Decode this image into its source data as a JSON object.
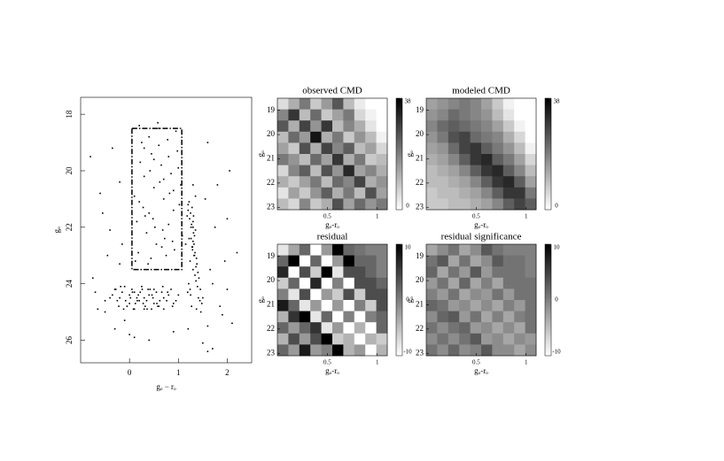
{
  "chart_data": [
    {
      "type": "scatter",
      "x_label": "gₒ − rₒ",
      "y_label": "gₒ",
      "color": "#000000",
      "xlim": [
        -1,
        2.5
      ],
      "ylim": [
        17.4,
        26.8
      ],
      "y_inverted": true,
      "xticks": [
        0,
        1,
        2
      ],
      "yticks": [
        18,
        20,
        22,
        24,
        26
      ],
      "selection_box": {
        "x": [
          0.05,
          1.07
        ],
        "y": [
          18.5,
          23.5
        ]
      },
      "x": [
        -0.3,
        -0.2,
        -0.1,
        0,
        0.1,
        0.2,
        0.3,
        0.4,
        0.5,
        0.6,
        -0.25,
        -0.15,
        -0.05,
        0.05,
        0.15,
        0.25,
        0.35,
        0.45,
        0.55,
        0.7,
        -0.35,
        -0.12,
        0.02,
        0.12,
        0.22,
        0.32,
        0.42,
        0.62,
        0.8,
        0.9,
        -0.18,
        -0.08,
        0.08,
        0.18,
        0.28,
        0.38,
        0.48,
        0.58,
        0.68,
        0.78,
        -0.4,
        -0.28,
        0.0,
        0.1,
        0.3,
        0.5,
        0.7,
        0.85,
        0.95,
        1.0,
        -0.22,
        0.06,
        0.16,
        0.26,
        0.36,
        0.46,
        0.56,
        0.66,
        0.76,
        0.88,
        1.2,
        1.25,
        1.3,
        1.35,
        1.22,
        1.28,
        1.32,
        1.38,
        1.18,
        1.26,
        1.3,
        1.34,
        1.24,
        1.4,
        1.2,
        1.27,
        1.33,
        1.29,
        1.36,
        1.42,
        1.15,
        1.23,
        1.31,
        1.37,
        1.21,
        1.45,
        1.3,
        1.26,
        1.34,
        1.39,
        1.28,
        1.32,
        1.36,
        1.25,
        1.44,
        1.19,
        1.3,
        1.33,
        1.27,
        1.41,
        1.35,
        1.48,
        1.22,
        1.31,
        1.38,
        1.24,
        1.3,
        1.46,
        1.29,
        1.37,
        0.2,
        0.4,
        0.6,
        0.8,
        1.0,
        0.3,
        0.5,
        0.7,
        0.9,
        0.15,
        0.35,
        0.55,
        0.75,
        0.95,
        0.25,
        0.45,
        0.65,
        0.85,
        1.05,
        0.1,
        0.28,
        0.48,
        0.68,
        0.88,
        0.18,
        0.38,
        0.58,
        0.78,
        0.98,
        0.22,
        0.42,
        0.62,
        0.82,
        1.02,
        0.32,
        0.52,
        0.72,
        0.92,
        0.12,
        0.6,
        0.3,
        0.5,
        0.7,
        0.9,
        0.2,
        0.4,
        0.8,
        1.08,
        0.66,
        0.44,
        -0.8,
        -0.6,
        -0.4,
        -0.2,
        1.6,
        1.8,
        2.0,
        2.2,
        1.7,
        1.9,
        -0.7,
        -0.5,
        -0.3,
        1.5,
        1.65,
        1.85,
        2.1,
        -0.55,
        -0.45,
        1.55,
        -0.65,
        -0.1,
        0.0,
        1.6,
        1.75,
        -0.75,
        2.05,
        1.95,
        -0.35,
        0.1,
        1.5,
        1.7,
        -0.5,
        -0.2,
        0.4,
        0.9,
        1.2,
        1.6,
        2.0,
        -0.15
      ],
      "y": [
        24.2,
        24.5,
        24.1,
        24.7,
        24.3,
        24.6,
        24.9,
        24.4,
        24.2,
        24.8,
        24.6,
        24.3,
        24.8,
        24.2,
        24.5,
        24.1,
        24.6,
        24.9,
        24.3,
        24.5,
        24.4,
        24.9,
        24.5,
        24.7,
        24.3,
        24.8,
        24.2,
        24.6,
        24.4,
        24.7,
        24.1,
        24.6,
        24.9,
        24.4,
        24.7,
        24.2,
        24.5,
        24.8,
        24.1,
        24.3,
        24.5,
        24.2,
        24.4,
        24.9,
        24.5,
        24.7,
        24.9,
        24.2,
        24.6,
        24.4,
        24.8,
        24.3,
        24.6,
        24.2,
        24.9,
        24.4,
        24.7,
        24.3,
        24.6,
        24.8,
        21.2,
        21.5,
        21.8,
        22.1,
        22.4,
        22.7,
        23.0,
        23.3,
        21.6,
        22.0,
        22.5,
        22.9,
        23.2,
        23.6,
        21.4,
        21.9,
        22.3,
        22.8,
        23.4,
        23.8,
        22.6,
        21.7,
        22.2,
        23.1,
        24.0,
        24.2,
        23.5,
        22.4,
        23.7,
        24.1,
        21.3,
        22.6,
        23.9,
        24.4,
        24.6,
        24.3,
        22.0,
        23.0,
        24.8,
        24.5,
        20.9,
        24.7,
        21.1,
        21.6,
        23.3,
        24.2,
        20.5,
        25.0,
        22.7,
        24.9,
        18.4,
        18.8,
        19.1,
        19.5,
        19.9,
        20.2,
        20.6,
        21.0,
        21.4,
        21.8,
        22.2,
        22.6,
        23.0,
        18.6,
        19.0,
        19.4,
        19.8,
        20.1,
        20.5,
        20.9,
        21.3,
        21.7,
        22.1,
        22.5,
        22.9,
        23.3,
        18.3,
        18.9,
        19.3,
        19.7,
        20.0,
        20.4,
        20.8,
        21.2,
        21.6,
        22.0,
        22.4,
        22.8,
        23.2,
        18.5,
        19.2,
        19.6,
        20.3,
        20.7,
        21.1,
        21.5,
        21.9,
        22.3,
        22.7,
        23.1,
        19.5,
        20.8,
        22.1,
        23.3,
        19.0,
        20.5,
        21.7,
        22.9,
        24.0,
        25.1,
        24.3,
        25.0,
        25.6,
        24.5,
        23.5,
        24.8,
        25.4,
        21.5,
        23.0,
        21.0,
        24.9,
        25.3,
        25.8,
        25.5,
        22.0,
        23.8,
        20.0,
        23.2,
        19.2,
        25.9,
        26.1,
        26.3,
        24.6,
        20.4,
        26.0,
        25.7,
        25.6,
        26.4,
        24.2,
        22.6
      ]
    },
    {
      "type": "heatmap",
      "title": "observed  CMD",
      "x_label": "gₒ-rₒ",
      "y_label": "gₒ",
      "xlim": [
        0,
        1.1
      ],
      "ylim": [
        18.5,
        23.1
      ],
      "y_inverted": true,
      "xticks": [
        0.5,
        1
      ],
      "yticks": [
        19,
        20,
        21,
        22,
        23
      ],
      "zlim": [
        0,
        38
      ],
      "colorbar_ticks": [
        38,
        0
      ],
      "z": [
        [
          5,
          12,
          20,
          8,
          15,
          25,
          10,
          3,
          0,
          0
        ],
        [
          18,
          30,
          10,
          22,
          8,
          14,
          20,
          6,
          2,
          0
        ],
        [
          25,
          12,
          28,
          16,
          30,
          10,
          18,
          12,
          4,
          0
        ],
        [
          10,
          22,
          15,
          35,
          12,
          20,
          8,
          16,
          10,
          2
        ],
        [
          14,
          8,
          26,
          12,
          28,
          18,
          24,
          10,
          14,
          6
        ],
        [
          20,
          16,
          10,
          22,
          14,
          30,
          12,
          20,
          8,
          10
        ],
        [
          6,
          18,
          24,
          10,
          26,
          16,
          32,
          14,
          18,
          12
        ],
        [
          12,
          8,
          14,
          20,
          10,
          22,
          18,
          28,
          12,
          16
        ],
        [
          4,
          14,
          8,
          16,
          24,
          12,
          20,
          10,
          26,
          14
        ],
        [
          10,
          6,
          18,
          8,
          12,
          26,
          14,
          22,
          16,
          20
        ]
      ]
    },
    {
      "type": "heatmap",
      "title": "modeled  CMD",
      "x_label": "gₒ-rₒ",
      "y_label": "gₒ",
      "xlim": [
        0,
        1.1
      ],
      "ylim": [
        18.5,
        23.1
      ],
      "y_inverted": true,
      "xticks": [
        0.5,
        1
      ],
      "yticks": [
        19,
        20,
        21,
        22,
        23
      ],
      "zlim": [
        0,
        38
      ],
      "colorbar_ticks": [
        38,
        0
      ],
      "z": [
        [
          14,
          16,
          18,
          20,
          18,
          14,
          8,
          2,
          0,
          0
        ],
        [
          16,
          18,
          22,
          20,
          18,
          16,
          10,
          4,
          0,
          0
        ],
        [
          18,
          22,
          24,
          22,
          20,
          18,
          14,
          8,
          2,
          0
        ],
        [
          16,
          20,
          26,
          28,
          22,
          20,
          18,
          12,
          6,
          0
        ],
        [
          14,
          16,
          22,
          28,
          30,
          24,
          20,
          16,
          10,
          2
        ],
        [
          12,
          14,
          18,
          24,
          30,
          32,
          24,
          20,
          14,
          6
        ],
        [
          10,
          12,
          14,
          18,
          24,
          30,
          32,
          24,
          18,
          10
        ],
        [
          10,
          10,
          12,
          14,
          18,
          24,
          30,
          32,
          24,
          14
        ],
        [
          8,
          10,
          10,
          12,
          14,
          18,
          24,
          30,
          30,
          20
        ],
        [
          8,
          8,
          10,
          10,
          12,
          14,
          18,
          24,
          28,
          24
        ]
      ]
    },
    {
      "type": "heatmap",
      "title": "residual",
      "x_label": "gₒ-rₒ",
      "y_label": "gₒ",
      "xlim": [
        0,
        1.1
      ],
      "ylim": [
        18.5,
        23.1
      ],
      "y_inverted": true,
      "xticks": [
        0.5,
        1
      ],
      "yticks": [
        19,
        20,
        21,
        22,
        23
      ],
      "zlim": [
        -10,
        10
      ],
      "colorbar_ticks": [
        10,
        0,
        -10
      ],
      "z": [
        [
          -8,
          -3,
          2,
          -10,
          -2,
          10,
          2,
          1,
          0,
          0
        ],
        [
          2,
          10,
          -10,
          2,
          -10,
          -2,
          10,
          2,
          2,
          0
        ],
        [
          7,
          -10,
          4,
          -6,
          10,
          -8,
          4,
          4,
          2,
          0
        ],
        [
          -6,
          2,
          -10,
          7,
          -10,
          0,
          -10,
          4,
          4,
          2
        ],
        [
          0,
          -8,
          4,
          -10,
          -2,
          -6,
          4,
          -6,
          4,
          4
        ],
        [
          8,
          2,
          -8,
          -2,
          -10,
          -2,
          -10,
          0,
          -6,
          4
        ],
        [
          -4,
          6,
          10,
          -8,
          2,
          -10,
          0,
          -10,
          0,
          2
        ],
        [
          2,
          -2,
          2,
          6,
          -8,
          -2,
          -10,
          -4,
          -10,
          2
        ],
        [
          -4,
          4,
          -2,
          4,
          10,
          -6,
          -4,
          -10,
          -4,
          -6
        ],
        [
          2,
          -2,
          8,
          -2,
          0,
          10,
          -4,
          -2,
          -10,
          -4
        ]
      ]
    },
    {
      "type": "heatmap",
      "title": "residual significance",
      "x_label": "gₒ-rₒ",
      "y_label": "gₒ",
      "xlim": [
        0,
        1.1
      ],
      "ylim": [
        18.5,
        23.1
      ],
      "y_inverted": true,
      "xticks": [
        0.5,
        1
      ],
      "yticks": [
        19,
        20,
        21,
        22,
        23
      ],
      "zlim": [
        -10,
        10
      ],
      "colorbar_ticks": [
        10,
        0,
        -10
      ],
      "z": [
        [
          -3,
          -1,
          1,
          -3,
          -1,
          3,
          1,
          0,
          0,
          0
        ],
        [
          1,
          3,
          -3,
          1,
          -3,
          -1,
          3,
          1,
          1,
          0
        ],
        [
          2,
          -3,
          1,
          -2,
          3,
          -2,
          1,
          1,
          1,
          0
        ],
        [
          -2,
          1,
          -3,
          2,
          -3,
          0,
          -3,
          1,
          1,
          1
        ],
        [
          0,
          -2,
          1,
          -3,
          -1,
          -2,
          1,
          -2,
          1,
          1
        ],
        [
          2,
          1,
          -2,
          -1,
          -3,
          -1,
          -3,
          0,
          -2,
          1
        ],
        [
          -1,
          2,
          3,
          -2,
          1,
          -3,
          0,
          -3,
          0,
          1
        ],
        [
          1,
          -1,
          1,
          2,
          -2,
          -1,
          -3,
          -1,
          -3,
          1
        ],
        [
          -1,
          1,
          -1,
          1,
          3,
          -2,
          -1,
          -3,
          -1,
          -2
        ],
        [
          1,
          -1,
          2,
          -1,
          0,
          3,
          -1,
          -1,
          -3,
          -1
        ]
      ]
    }
  ]
}
